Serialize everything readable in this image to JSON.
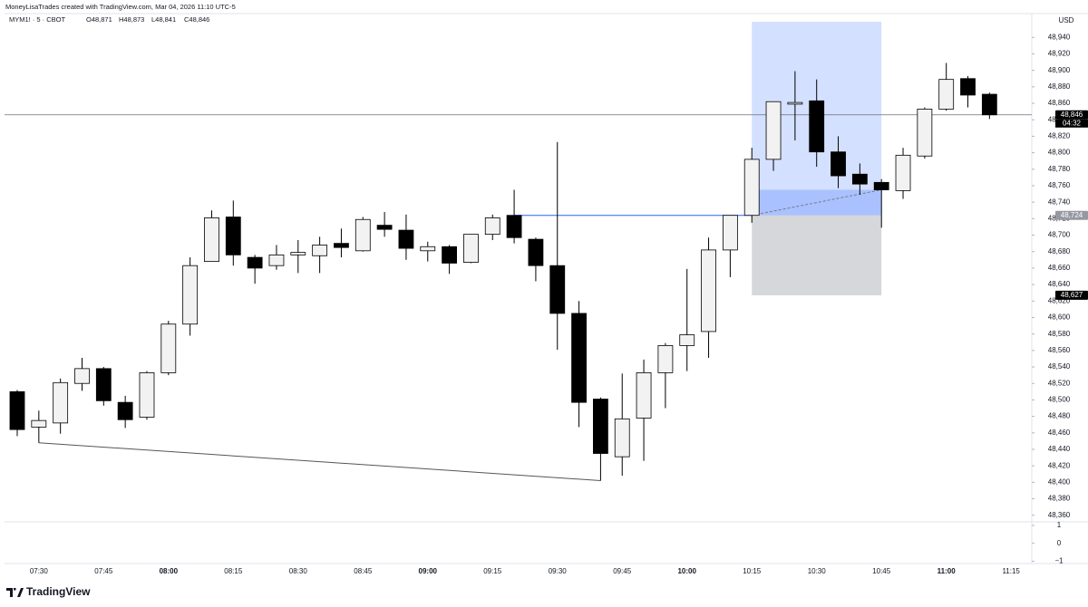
{
  "header": {
    "attribution": "MoneyLisaTrades created with TradingView.com, Mar 04, 2026 11:10 UTC-5",
    "symbol": "MYM1! · 5 · CBOT",
    "ohlc": [
      "O48,871",
      "H48,873",
      "L48,841",
      "C48,846"
    ]
  },
  "chart_data": {
    "type": "candlestick",
    "x": [
      "07:25",
      "07:30",
      "07:35",
      "07:40",
      "07:45",
      "07:50",
      "07:55",
      "08:00",
      "08:05",
      "08:10",
      "08:15",
      "08:20",
      "08:25",
      "08:30",
      "08:35",
      "08:40",
      "08:45",
      "08:50",
      "08:55",
      "09:00",
      "09:05",
      "09:10",
      "09:15",
      "09:20",
      "09:25",
      "09:30",
      "09:35",
      "09:40",
      "09:45",
      "09:50",
      "09:55",
      "10:00",
      "10:05",
      "10:10",
      "10:15",
      "10:20",
      "10:25",
      "10:30",
      "10:35",
      "10:40",
      "10:45",
      "10:50",
      "10:55",
      "11:00",
      "11:05",
      "11:10"
    ],
    "open": [
      48510,
      48467,
      48472,
      48520,
      48538,
      48497,
      48479,
      48533,
      48592,
      48668,
      48722,
      48673,
      48663,
      48676,
      48675,
      48690,
      48681,
      48712,
      48706,
      48681,
      48686,
      48667,
      48701,
      48724,
      48695,
      48663,
      48605,
      48501,
      48431,
      48478,
      48533,
      48566,
      48583,
      48682,
      48724,
      48792,
      48859,
      48863,
      48801,
      48774,
      48764,
      48754,
      48796,
      48853,
      48890,
      48871
    ],
    "high": [
      48512,
      48487,
      48526,
      48551,
      48540,
      48505,
      48535,
      48596,
      48673,
      48730,
      48742,
      48676,
      48688,
      48694,
      48698,
      48708,
      48722,
      48728,
      48725,
      48692,
      48688,
      48701,
      48725,
      48755,
      48697,
      48813,
      48620,
      48503,
      48532,
      48549,
      48569,
      48659,
      48697,
      48724,
      48806,
      48862,
      48899,
      48889,
      48820,
      48787,
      48768,
      48806,
      48855,
      48909,
      48893,
      48873
    ],
    "low": [
      48456,
      48448,
      48459,
      48511,
      48493,
      48466,
      48476,
      48530,
      48578,
      48668,
      48663,
      48641,
      48658,
      48654,
      48654,
      48673,
      48680,
      48698,
      48670,
      48668,
      48653,
      48666,
      48694,
      48690,
      48644,
      48561,
      48467,
      48402,
      48408,
      48426,
      48490,
      48535,
      48551,
      48649,
      48715,
      48778,
      48815,
      48783,
      48757,
      48749,
      48709,
      48744,
      48793,
      48851,
      48855,
      48841
    ],
    "close": [
      48464,
      48475,
      48521,
      48538,
      48499,
      48476,
      48533,
      48592,
      48663,
      48721,
      48676,
      48660,
      48676,
      48679,
      48688,
      48685,
      48719,
      48707,
      48684,
      48686,
      48666,
      48701,
      48721,
      48697,
      48663,
      48605,
      48497,
      48435,
      48477,
      48533,
      48566,
      48579,
      48682,
      48724,
      48792,
      48862,
      48861,
      48801,
      48772,
      48762,
      48755,
      48797,
      48853,
      48889,
      48870,
      48846
    ],
    "up_color": "#f2f2f2",
    "down_color": "#000000",
    "ylim": [
      48352,
      48970
    ],
    "yticks": [
      {
        "value": 48360,
        "label": "48,360"
      },
      {
        "value": 48380,
        "label": "48,380"
      },
      {
        "value": 48400,
        "label": "48,400"
      },
      {
        "value": 48420,
        "label": "48,420"
      },
      {
        "value": 48440,
        "label": "48,440"
      },
      {
        "value": 48460,
        "label": "48,460"
      },
      {
        "value": 48480,
        "label": "48,480"
      },
      {
        "value": 48500,
        "label": "48,500"
      },
      {
        "value": 48520,
        "label": "48,520"
      },
      {
        "value": 48540,
        "label": "48,540"
      },
      {
        "value": 48560,
        "label": "48,560"
      },
      {
        "value": 48580,
        "label": "48,580"
      },
      {
        "value": 48600,
        "label": "48,600"
      },
      {
        "value": 48620,
        "label": "48,620"
      },
      {
        "value": 48640,
        "label": "48,640"
      },
      {
        "value": 48660,
        "label": "48,660"
      },
      {
        "value": 48680,
        "label": "48,680"
      },
      {
        "value": 48700,
        "label": "48,700"
      },
      {
        "value": 48720,
        "label": "48,720"
      },
      {
        "value": 48740,
        "label": "48,740"
      },
      {
        "value": 48760,
        "label": "48,760"
      },
      {
        "value": 48780,
        "label": "48,780"
      },
      {
        "value": 48800,
        "label": "48,800"
      },
      {
        "value": 48820,
        "label": "48,820"
      },
      {
        "value": 48840,
        "label": "48,840"
      },
      {
        "value": 48860,
        "label": "48,860"
      },
      {
        "value": 48880,
        "label": "48,880"
      },
      {
        "value": 48900,
        "label": "48,900"
      },
      {
        "value": 48920,
        "label": "48,920"
      },
      {
        "value": 48940,
        "label": "48,940"
      }
    ],
    "xticks": [
      "07:30",
      "07:45",
      "08:00",
      "08:15",
      "08:30",
      "08:45",
      "09:00",
      "09:15",
      "09:30",
      "09:45",
      "10:00",
      "10:15",
      "10:30",
      "10:45",
      "11:00",
      "11:15"
    ],
    "currency": "USD",
    "price_line": {
      "value": 48846,
      "label": "48,846",
      "countdown": "04:32"
    },
    "position": {
      "start": "10:15",
      "end": "10:45",
      "target": 48959,
      "entry": {
        "value": 48724,
        "label": "48,724"
      },
      "stop": {
        "value": 48627,
        "label": "48,627"
      }
    },
    "trendline": {
      "from": {
        "time": "07:30",
        "value": 48448
      },
      "to": {
        "time": "09:40",
        "value": 48402
      }
    },
    "hline": {
      "from": "09:20",
      "to": "10:15",
      "value": 48724
    },
    "indicator": {
      "ylim": [
        -1.13,
        1.15
      ],
      "yticks": [
        1,
        0,
        {
          "value": -1,
          "label": "−1"
        }
      ]
    }
  },
  "footer": {
    "logo": "TradingView"
  }
}
